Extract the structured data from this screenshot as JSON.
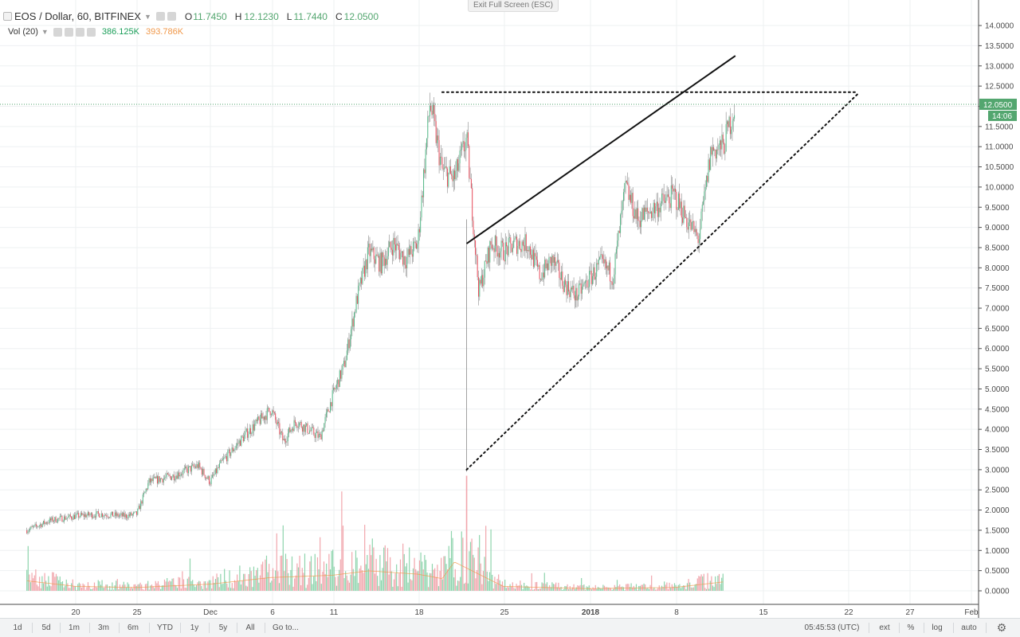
{
  "legend": {
    "symbol": "EOS / Dollar, 60, BITFINEX",
    "ohlc": [
      {
        "k": "O",
        "v": "11.7450"
      },
      {
        "k": "H",
        "v": "12.1230"
      },
      {
        "k": "L",
        "v": "11.7440"
      },
      {
        "k": "C",
        "v": "12.0500"
      }
    ],
    "vol_label": "Vol (20)",
    "vol_value": "386.125K",
    "vol_ma_value": "393.786K"
  },
  "exit_fullscreen_label": "Exit Full Screen (ESC)",
  "price_axis": {
    "ticks": [
      "14.0000",
      "13.5000",
      "13.0000",
      "12.5000",
      "12.0000",
      "11.5000",
      "11.0000",
      "10.5000",
      "10.0000",
      "9.5000",
      "9.0000",
      "8.5000",
      "8.0000",
      "7.5000",
      "7.0000",
      "6.5000",
      "6.0000",
      "5.5000",
      "5.0000",
      "4.5000",
      "4.0000",
      "3.5000",
      "3.0000",
      "2.5000",
      "2.0000",
      "1.5000",
      "1.0000",
      "0.5000",
      "0.0000"
    ],
    "last_price": "12.0500",
    "countdown": "14:06"
  },
  "time_axis": {
    "labels": [
      "20",
      "25",
      "Dec",
      "6",
      "11",
      "18",
      "25",
      "2018",
      "8",
      "15",
      "22",
      "27",
      "Feb"
    ]
  },
  "bottom_bar": {
    "ranges": [
      "1d",
      "5d",
      "1m",
      "3m",
      "6m",
      "YTD",
      "1y",
      "5y",
      "All"
    ],
    "goto": "Go to...",
    "clock": "05:45:53 (UTC)",
    "ext": "ext",
    "percent": "%",
    "log": "log",
    "auto": "auto"
  },
  "colors": {
    "up": "#53b987",
    "down": "#eb4d5c",
    "wick": "#8a8a8a",
    "accent": "#53a66f",
    "vol_ma": "#f0984a",
    "vol_value": "#1b9e59"
  },
  "chart_data": {
    "type": "line",
    "title": "EOS / Dollar, 60, BITFINEX",
    "xlabel": "",
    "ylabel": "",
    "ylim": [
      0,
      14.2
    ],
    "grid": true,
    "last_price": 12.05,
    "x_ticks": [
      "20",
      "25",
      "Dec",
      "6",
      "11",
      "18",
      "25",
      "2018",
      "8",
      "15",
      "22",
      "27",
      "Feb"
    ],
    "series": [
      {
        "name": "",
        "x": [
          "Nov 16",
          "Nov 18",
          "Nov 20",
          "Nov 22",
          "Nov 24",
          "Nov 25",
          "Nov 26",
          "Nov 28",
          "Nov 30",
          "Dec 1",
          "Dec 2",
          "Dec 4",
          "Dec 6",
          "Dec 7",
          "Dec 8",
          "Dec 10",
          "Dec 11",
          "Dec 12",
          "Dec 13",
          "Dec 14",
          "Dec 15",
          "Dec 16",
          "Dec 17",
          "Dec 18",
          "Dec 19",
          "Dec 20",
          "Dec 21",
          "Dec 22",
          "Dec 23",
          "Dec 24",
          "Dec 25",
          "Dec 26",
          "Dec 27",
          "Dec 28",
          "Dec 29",
          "Dec 30",
          "Dec 31",
          "Jan 1",
          "Jan 2",
          "Jan 3",
          "Jan 4",
          "Jan 5",
          "Jan 6",
          "Jan 7",
          "Jan 8",
          "Jan 9",
          "Jan 10",
          "Jan 11",
          "Jan 12",
          "Jan 13"
        ],
        "y": [
          1.5,
          1.75,
          1.85,
          1.9,
          1.85,
          1.9,
          2.7,
          2.85,
          3.1,
          2.7,
          3.2,
          3.9,
          4.5,
          3.7,
          4.2,
          3.8,
          4.8,
          5.6,
          7.2,
          8.4,
          8.1,
          8.6,
          8.2,
          8.6,
          12.1,
          10.4,
          10.2,
          11.2,
          7.4,
          8.6,
          8.4,
          8.6,
          8.6,
          7.8,
          8.2,
          7.6,
          7.3,
          7.7,
          8.1,
          7.8,
          10.0,
          9.2,
          9.4,
          9.6,
          9.8,
          9.2,
          8.7,
          10.9,
          11.0,
          12.05
        ]
      },
      {
        "name": "Vol (20)",
        "unit": "M",
        "x": [
          "Nov 16",
          "Nov 20",
          "Nov 25",
          "Dec 1",
          "Dec 6",
          "Dec 11",
          "Dec 14",
          "Dec 18",
          "Dec 20",
          "Dec 21",
          "Dec 25",
          "Jan 1",
          "Jan 8",
          "Jan 12"
        ],
        "y": [
          0.45,
          0.2,
          0.15,
          0.3,
          0.6,
          0.7,
          0.9,
          0.75,
          0.55,
          1.3,
          0.2,
          0.1,
          0.15,
          0.4
        ]
      }
    ],
    "annotations": [
      {
        "type": "resistance",
        "style": "dotted",
        "from": [
          "Dec 20",
          12.35
        ],
        "to": [
          "Jan 23",
          12.35
        ]
      },
      {
        "type": "support",
        "style": "dotted",
        "from": [
          "Dec 22",
          3.0
        ],
        "to": [
          "Jan 23",
          12.3
        ]
      },
      {
        "type": "trendline",
        "style": "solid",
        "from": [
          "Dec 22",
          8.6
        ],
        "to": [
          "Jan 13",
          13.25
        ]
      }
    ]
  }
}
